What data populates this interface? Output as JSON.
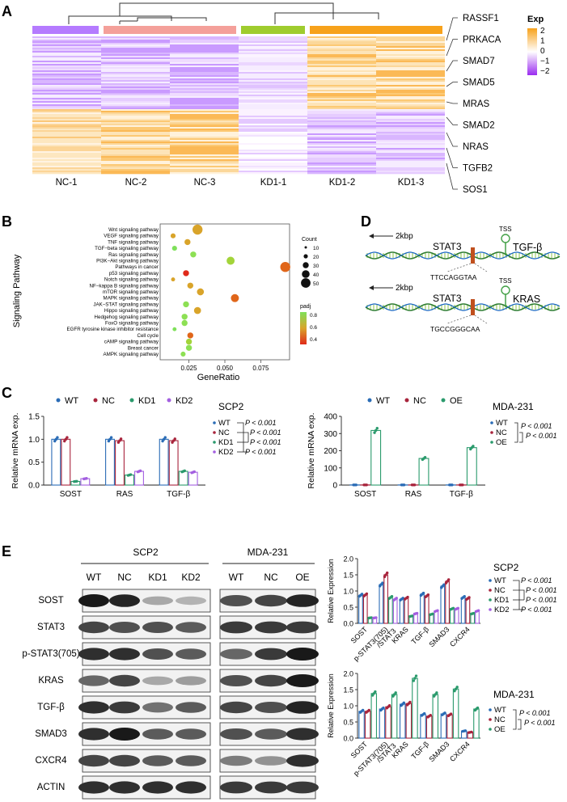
{
  "panel_letters": [
    "A",
    "B",
    "C",
    "D",
    "E"
  ],
  "panel_a": {
    "samples": [
      "NC-1",
      "NC-2",
      "NC-3",
      "KD1-1",
      "KD1-2",
      "KD1-3"
    ],
    "genes": [
      "RASSF1",
      "PRKACA",
      "SMAD7",
      "SMAD5",
      "MRAS",
      "SMAD2",
      "NRAS",
      "TGFB2",
      "SOS1"
    ],
    "legend": {
      "title": "Exp",
      "ticks": [
        "2",
        "1",
        "0",
        "−1",
        "−2"
      ]
    },
    "group_colors": [
      "#b57bff",
      "#f4a09a",
      "#9fcc2e",
      "#f7a21b"
    ]
  },
  "panel_b": {
    "ylabel": "Signaling Pathway",
    "xlabel": "GeneRatio",
    "xticks": [
      "0.025",
      "0.050",
      "0.075"
    ],
    "pathways": [
      "Wnt signaling pathway",
      "VEGF signaling pathway",
      "TNF signaling pathway",
      "TGF−beta signaling pathway",
      "Ras signaling pathway",
      "PI3K−Akt signaling pathway",
      "Pathways in cancer",
      "p53 signaling pathway",
      "Notch signaling pathway",
      "NF−kappa B signaling pathway",
      "mTOR signaling pathway",
      "MAPK signaling pathway",
      "JAK−STAT signaling pathway",
      "Hippo signaling pathway",
      "Hedgehog signaling pathway",
      "FoxO signaling pathway",
      "EGFR tyrosine kinase inhibitor resistance",
      "Cell cycle",
      "cAMP signaling pathway",
      "Breast cancer",
      "AMPK signaling pathway"
    ],
    "count_legend": {
      "title": "Count",
      "values": [
        "10",
        "20",
        "30",
        "40",
        "50"
      ]
    },
    "padj_legend": {
      "title": "padj",
      "ticks": [
        "0.8",
        "0.6",
        "0.4"
      ]
    }
  },
  "panel_d": {
    "distance": "2kbp",
    "tf": "STAT3",
    "tss": "TSS",
    "rows": [
      {
        "gene": "TGF-β",
        "motif": "TTCCAGGTAA"
      },
      {
        "gene": "KRAS",
        "motif": "TGCCGGGCAA"
      }
    ]
  },
  "panel_c": {
    "left": {
      "cell_line": "SCP2",
      "ylabel": "Relative mRNA exp.",
      "legend": [
        "WT",
        "NC",
        "KD1",
        "KD2"
      ],
      "yticks": [
        "0.0",
        "0.5",
        "1.0",
        "1.5"
      ],
      "categories": [
        "SOST",
        "RAS",
        "TGF-β"
      ],
      "pvalues": [
        "P < 0.001",
        "P < 0.001",
        "P < 0.001",
        "P < 0.001"
      ]
    },
    "right": {
      "cell_line": "MDA-231",
      "ylabel": "Relative mRNA exp.",
      "legend": [
        "WT",
        "NC",
        "OE"
      ],
      "yticks": [
        "0",
        "100",
        "200",
        "300",
        "400"
      ],
      "categories": [
        "SOST",
        "RAS",
        "TGF-β"
      ],
      "pvalues": [
        "P < 0.001",
        "P < 0.001"
      ]
    }
  },
  "panel_e": {
    "blot": {
      "group_left": "SCP2",
      "group_right": "MDA-231",
      "lanes_left": [
        "WT",
        "NC",
        "KD1",
        "KD2"
      ],
      "lanes_right": [
        "WT",
        "NC",
        "OE"
      ],
      "proteins": [
        "SOST",
        "STAT3",
        "p-STAT3(705)",
        "KRAS",
        "TGF-β",
        "SMAD3",
        "CXCR4",
        "ACTIN"
      ]
    },
    "top_chart": {
      "cell_line": "SCP2",
      "ylabel": "Relative Expression",
      "yticks": [
        "0.0",
        "0.5",
        "1.0",
        "1.5",
        "2.0"
      ],
      "categories": [
        "SOST",
        "p-STAT3(705)",
        "/STAT3",
        "KRAS",
        "TGF-β",
        "SMAD3",
        "CXCR4"
      ],
      "legend": [
        "WT",
        "NC",
        "KD1",
        "KD2"
      ],
      "pvalues": [
        "P < 0.001",
        "P < 0.001",
        "P < 0.001",
        "P < 0.001"
      ]
    },
    "bottom_chart": {
      "cell_line": "MDA-231",
      "ylabel": "Relative Expression",
      "yticks": [
        "0.0",
        "0.5",
        "1.0",
        "1.5",
        "2.0"
      ],
      "categories": [
        "SOST",
        "p-STAT3(705)",
        "/STAT3",
        "KRAS",
        "TGF-β",
        "SMAD3",
        "CXCR4"
      ],
      "legend": [
        "WT",
        "NC",
        "OE"
      ],
      "pvalues": [
        "P < 0.001",
        "P < 0.001"
      ]
    }
  },
  "colors": {
    "wt": "#2a6cb6",
    "nc": "#a8243c",
    "kd1": "#2a9a6c",
    "kd2": "#a35fe0",
    "oe": "#2a9a6c"
  },
  "chart_data": [
    {
      "type": "bar",
      "title": "SCP2",
      "ylabel": "Relative mRNA exp.",
      "categories": [
        "SOST",
        "RAS",
        "TGF-β"
      ],
      "ylim": [
        0,
        1.5
      ],
      "series": [
        {
          "name": "WT",
          "values": [
            1.0,
            1.0,
            1.0
          ]
        },
        {
          "name": "NC",
          "values": [
            1.0,
            0.97,
            0.97
          ]
        },
        {
          "name": "KD1",
          "values": [
            0.08,
            0.22,
            0.3
          ]
        },
        {
          "name": "KD2",
          "values": [
            0.14,
            0.3,
            0.28
          ]
        }
      ]
    },
    {
      "type": "bar",
      "title": "MDA-231",
      "ylabel": "Relative mRNA exp.",
      "categories": [
        "SOST",
        "RAS",
        "TGF-β"
      ],
      "ylim": [
        0,
        400
      ],
      "series": [
        {
          "name": "WT",
          "values": [
            1,
            1,
            1
          ]
        },
        {
          "name": "NC",
          "values": [
            1,
            1,
            1
          ]
        },
        {
          "name": "OE",
          "values": [
            318,
            155,
            218
          ]
        }
      ]
    },
    {
      "type": "bar",
      "title": "SCP2",
      "ylabel": "Relative Expression",
      "categories": [
        "SOST",
        "p-STAT3(705)/STAT3",
        "KRAS",
        "TGF-β",
        "SMAD3",
        "CXCR4"
      ],
      "ylim": [
        0,
        2.0
      ],
      "series": [
        {
          "name": "WT",
          "values": [
            0.87,
            1.2,
            0.75,
            0.9,
            1.15,
            0.8
          ]
        },
        {
          "name": "NC",
          "values": [
            0.88,
            1.5,
            0.78,
            0.85,
            1.3,
            0.77
          ]
        },
        {
          "name": "KD1",
          "values": [
            0.17,
            0.8,
            0.22,
            0.28,
            0.45,
            0.3
          ]
        },
        {
          "name": "KD2",
          "values": [
            0.17,
            0.75,
            0.3,
            0.38,
            0.45,
            0.38
          ]
        }
      ]
    },
    {
      "type": "bar",
      "title": "MDA-231",
      "ylabel": "Relative Expression",
      "categories": [
        "SOST",
        "p-STAT3(705)/STAT3",
        "KRAS",
        "TGF-β",
        "SMAD3",
        "CXCR4"
      ],
      "ylim": [
        0,
        2.0
      ],
      "series": [
        {
          "name": "WT",
          "values": [
            0.83,
            0.9,
            1.05,
            0.73,
            0.75,
            0.22
          ]
        },
        {
          "name": "NC",
          "values": [
            0.83,
            0.97,
            1.07,
            0.68,
            0.72,
            0.18
          ]
        },
        {
          "name": "OE",
          "values": [
            1.38,
            1.35,
            1.85,
            1.35,
            1.52,
            0.9
          ]
        }
      ]
    }
  ]
}
